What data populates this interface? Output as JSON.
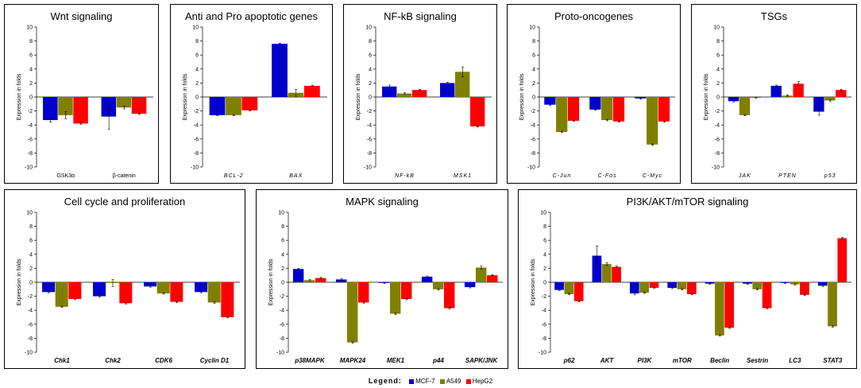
{
  "legend": {
    "title": "Legend:",
    "items": [
      {
        "name": "MCF-7",
        "color": "#0000cc"
      },
      {
        "name": "A549",
        "color": "#808000"
      },
      {
        "name": "HepG2",
        "color": "#ff0000"
      }
    ]
  },
  "chart_data": [
    {
      "type": "bar",
      "title": "Wnt signaling",
      "ylabel": "Expression in folds",
      "ylim": [
        -10,
        10
      ],
      "yticks": [
        "10",
        "8",
        "6",
        "4",
        "2",
        "0",
        "-2",
        "-4",
        "-6",
        "-8",
        "-10"
      ],
      "categories": [
        "GSK3α",
        "β-catenin"
      ],
      "label_style": "plain",
      "series": [
        {
          "name": "MCF-7",
          "values": [
            -3.3,
            -2.8
          ],
          "errors": [
            0.3,
            1.8
          ]
        },
        {
          "name": "A549",
          "values": [
            -2.6,
            -1.5
          ],
          "errors": [
            0.5,
            0.2
          ]
        },
        {
          "name": "HepG2",
          "values": [
            -3.8,
            -2.4
          ],
          "errors": [
            0.1,
            0.1
          ]
        }
      ]
    },
    {
      "type": "bar",
      "title": "Anti and Pro apoptotic genes",
      "ylabel": "Expression in folds",
      "ylim": [
        -10,
        10
      ],
      "yticks": [
        "10",
        "8",
        "6",
        "4",
        "2",
        "0",
        "-2",
        "-4",
        "-6",
        "-8",
        "-10"
      ],
      "categories": [
        "BCL-2",
        "BAX"
      ],
      "label_style": "italic",
      "series": [
        {
          "name": "MCF-7",
          "values": [
            -2.6,
            7.6
          ],
          "errors": [
            0.1,
            0.1
          ]
        },
        {
          "name": "A549",
          "values": [
            -2.6,
            0.6
          ],
          "errors": [
            0.1,
            0.5
          ]
        },
        {
          "name": "HepG2",
          "values": [
            -1.9,
            1.6
          ],
          "errors": [
            0.1,
            0.1
          ]
        }
      ]
    },
    {
      "type": "bar",
      "title": "NF-kB signaling",
      "ylabel": "Expression in folds",
      "ylim": [
        -10,
        10
      ],
      "yticks": [
        "10",
        "8",
        "6",
        "4",
        "2",
        "0",
        "-2",
        "-4",
        "-6",
        "-8",
        "-10"
      ],
      "categories": [
        "NF-kB",
        "MSK1"
      ],
      "label_style": "italic",
      "series": [
        {
          "name": "MCF-7",
          "values": [
            1.5,
            2.0
          ],
          "errors": [
            0.2,
            0.1
          ]
        },
        {
          "name": "A549",
          "values": [
            0.5,
            3.6
          ],
          "errors": [
            0.1,
            0.7
          ]
        },
        {
          "name": "HepG2",
          "values": [
            1.0,
            -4.2
          ],
          "errors": [
            0.1,
            0.1
          ]
        }
      ]
    },
    {
      "type": "bar",
      "title": "Proto-oncogenes",
      "ylabel": "Expression in folds",
      "ylim": [
        -10,
        10
      ],
      "yticks": [
        "10",
        "8",
        "6",
        "4",
        "2",
        "0",
        "-2",
        "-4",
        "-6",
        "-8",
        "-10"
      ],
      "categories": [
        "C-Jun",
        "C-Fos",
        "C-Myc"
      ],
      "label_style": "italic",
      "series": [
        {
          "name": "MCF-7",
          "values": [
            -1.1,
            -1.8,
            -0.2
          ],
          "errors": [
            0.1,
            0.1,
            0.1
          ]
        },
        {
          "name": "A549",
          "values": [
            -5.0,
            -3.3,
            -6.8
          ],
          "errors": [
            0.1,
            0.1,
            0.1
          ]
        },
        {
          "name": "HepG2",
          "values": [
            -3.4,
            -3.5,
            -3.5
          ],
          "errors": [
            0.1,
            0.1,
            0.1
          ]
        }
      ]
    },
    {
      "type": "bar",
      "title": "TSGs",
      "ylabel": "Expression in folds",
      "ylim": [
        -10,
        10
      ],
      "yticks": [
        "10",
        "8",
        "6",
        "4",
        "2",
        "0",
        "-2",
        "-4",
        "-6",
        "-8",
        "-10"
      ],
      "categories": [
        "JAK",
        "PTEN",
        "p53"
      ],
      "label_style": "italic",
      "series": [
        {
          "name": "MCF-7",
          "values": [
            -0.6,
            1.6,
            -2.1
          ],
          "errors": [
            0.1,
            0.1,
            0.5
          ]
        },
        {
          "name": "A549",
          "values": [
            -2.6,
            0.2,
            -0.5
          ],
          "errors": [
            0.1,
            0.1,
            0.1
          ]
        },
        {
          "name": "HepG2",
          "values": [
            -0.1,
            1.9,
            1.0
          ],
          "errors": [
            0.1,
            0.3,
            0.1
          ]
        }
      ]
    },
    {
      "type": "bar",
      "title": "Cell cycle and proliferation",
      "ylabel": "Expression in folds",
      "ylim": [
        -10,
        10
      ],
      "yticks": [
        "10",
        "8",
        "6",
        "4",
        "2",
        "0",
        "-2",
        "-4",
        "-6",
        "-8",
        "-10"
      ],
      "categories": [
        "Chk1",
        "Chk2",
        "CDK6",
        "Cyclin D1"
      ],
      "label_style": "bolditalic",
      "series": [
        {
          "name": "MCF-7",
          "values": [
            -1.4,
            -2.0,
            -0.6,
            -1.4
          ],
          "errors": [
            0.1,
            0.1,
            0.1,
            0.1
          ]
        },
        {
          "name": "A549",
          "values": [
            -3.5,
            -0.1,
            -1.6,
            -2.9
          ],
          "errors": [
            0.1,
            0.5,
            0.1,
            0.1
          ]
        },
        {
          "name": "HepG2",
          "values": [
            -2.4,
            -3.0,
            -2.8,
            -5.0
          ],
          "errors": [
            0.1,
            0.1,
            0.1,
            0.1
          ]
        }
      ]
    },
    {
      "type": "bar",
      "title": "MAPK signaling",
      "ylabel": "Expression in folds",
      "ylim": [
        -10,
        10
      ],
      "yticks": [
        "10",
        "8",
        "6",
        "4",
        "2",
        "0",
        "-2",
        "-4",
        "-6",
        "-8",
        "-10"
      ],
      "categories": [
        "p38MAPK",
        "MAPK24",
        "MEK1",
        "p44",
        "SAPK/JNK"
      ],
      "label_style": "bolditalic",
      "series": [
        {
          "name": "MCF-7",
          "values": [
            1.9,
            0.4,
            -0.1,
            0.8,
            -0.7
          ],
          "errors": [
            0.1,
            0.1,
            0.1,
            0.1,
            0.1
          ]
        },
        {
          "name": "A549",
          "values": [
            0.3,
            -8.6,
            -4.5,
            -1.0,
            2.1
          ],
          "errors": [
            0.1,
            0.1,
            0.1,
            0.1,
            0.2
          ]
        },
        {
          "name": "HepG2",
          "values": [
            0.6,
            -2.9,
            -2.4,
            -3.7,
            1.0
          ],
          "errors": [
            0.1,
            0.1,
            0.1,
            0.1,
            0.1
          ]
        }
      ]
    },
    {
      "type": "bar",
      "title": "PI3K/AKT/mTOR signaling",
      "ylabel": "Expression in folds",
      "ylim": [
        -10,
        10
      ],
      "yticks": [
        "10",
        "8",
        "6",
        "4",
        "2",
        "0",
        "-2",
        "-4",
        "-6",
        "-8",
        "-10"
      ],
      "categories": [
        "p62",
        "AKT",
        "PI3K",
        "mTOR",
        "Beclin",
        "Sestrin",
        "LC3",
        "STAT3"
      ],
      "label_style": "bolditalic",
      "series": [
        {
          "name": "MCF-7",
          "values": [
            -1.1,
            3.8,
            -1.6,
            -0.8,
            -0.2,
            -0.2,
            -0.1,
            -0.5
          ],
          "errors": [
            0.1,
            1.4,
            0.2,
            0.1,
            0.1,
            0.1,
            0.1,
            0.1
          ]
        },
        {
          "name": "A549",
          "values": [
            -1.7,
            2.6,
            -1.5,
            -1.0,
            -7.6,
            -1.0,
            -0.3,
            -6.3
          ],
          "errors": [
            0.1,
            0.2,
            0.1,
            0.1,
            0.1,
            0.1,
            0.1,
            0.1
          ]
        },
        {
          "name": "HepG2",
          "values": [
            -2.7,
            2.2,
            -0.8,
            -1.7,
            -6.5,
            -3.7,
            -1.8,
            6.3
          ],
          "errors": [
            0.1,
            0.1,
            0.1,
            0.1,
            0.1,
            0.1,
            0.1,
            0.1
          ]
        }
      ]
    }
  ]
}
